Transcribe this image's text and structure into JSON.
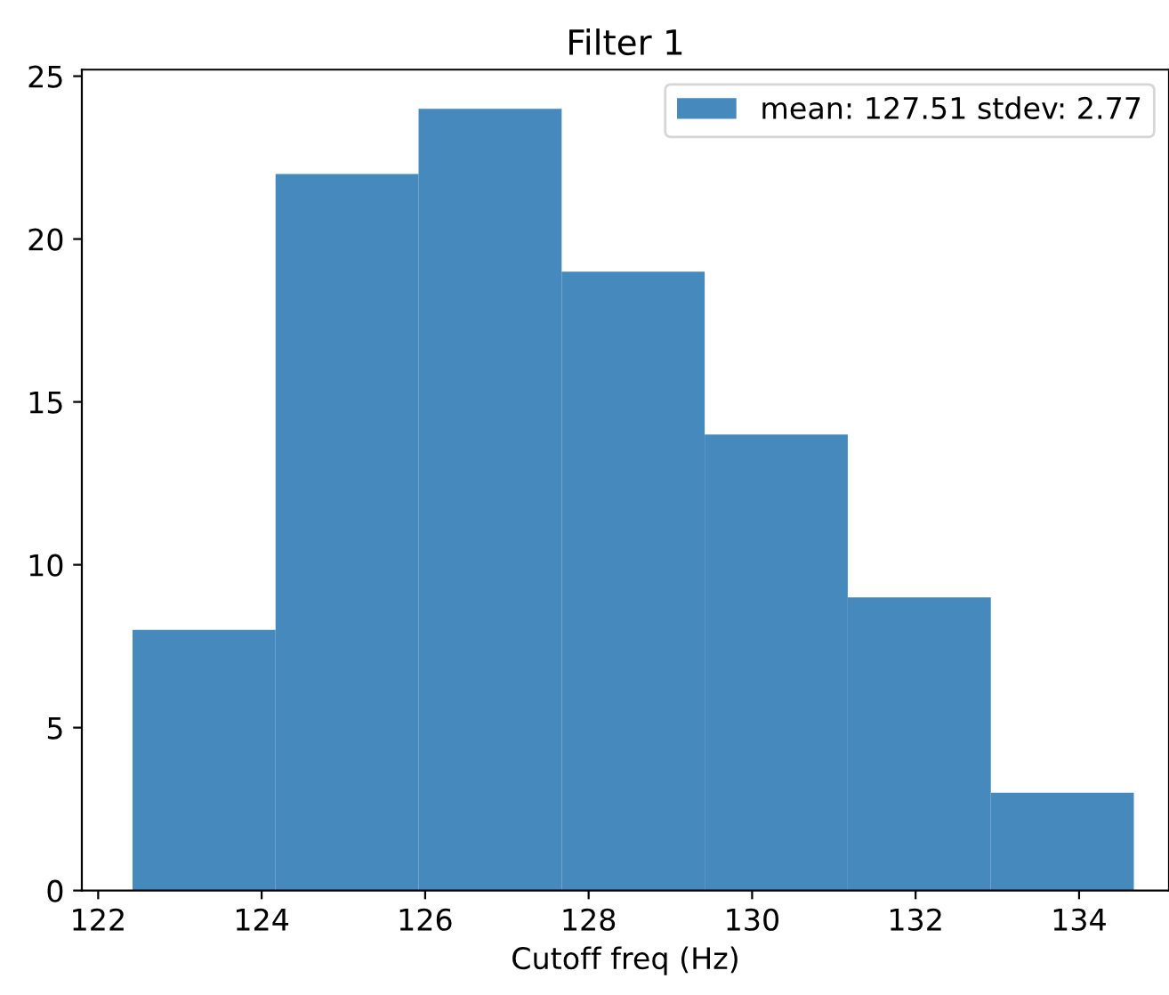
{
  "chart_data": {
    "type": "histogram",
    "title": "Filter 1",
    "xlabel": "Cutoff freq (Hz)",
    "bins": [
      122.42,
      124.17,
      125.92,
      127.67,
      129.42,
      131.17,
      132.92,
      134.67
    ],
    "series": [
      {
        "name": "mean: 127.51 stdev: 2.77",
        "color": "#4689bd",
        "values": [
          8,
          22,
          24,
          19,
          14,
          9,
          3
        ]
      }
    ],
    "xlim": [
      121.8,
      135.1
    ],
    "xticks": [
      122,
      124,
      126,
      128,
      130,
      132,
      134
    ],
    "ylim": [
      0,
      25.2
    ],
    "yticks": [
      0,
      5,
      10,
      15,
      20,
      25
    ],
    "legend": "top right"
  }
}
